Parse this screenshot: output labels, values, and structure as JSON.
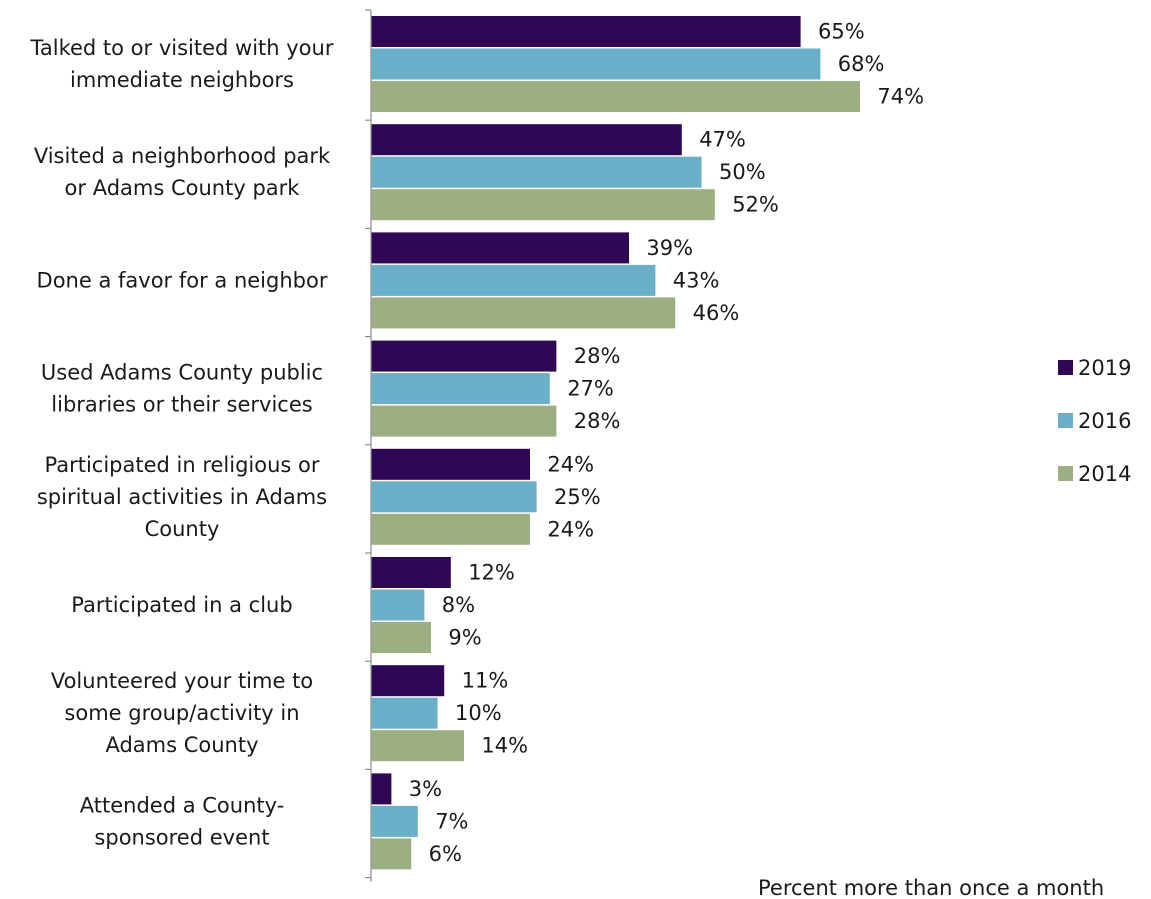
{
  "chart_data": {
    "type": "bar",
    "orientation": "horizontal",
    "categories": [
      [
        "Talked to or visited with your",
        "immediate neighbors"
      ],
      [
        "Visited a neighborhood park",
        "or Adams County park"
      ],
      [
        "Done a favor for a neighbor"
      ],
      [
        "Used Adams County public",
        "libraries or their services"
      ],
      [
        "Participated in religious or",
        "spiritual activities in Adams",
        "County"
      ],
      [
        "Participated in a club"
      ],
      [
        "Volunteered your time to",
        "some group/activity in",
        "Adams County"
      ],
      [
        "Attended a County-",
        "sponsored event"
      ]
    ],
    "series": [
      {
        "name": "2019",
        "color": "#2e0854",
        "values": [
          65,
          47,
          39,
          28,
          24,
          12,
          11,
          3
        ]
      },
      {
        "name": "2016",
        "color": "#6aafc8",
        "values": [
          68,
          50,
          43,
          27,
          25,
          8,
          10,
          7
        ]
      },
      {
        "name": "2014",
        "color": "#9caf82",
        "values": [
          74,
          52,
          46,
          28,
          24,
          9,
          14,
          6
        ]
      }
    ],
    "value_suffix": "%",
    "xlim": [
      0,
      100
    ],
    "grid": false,
    "legend_position": "right",
    "footnote": "Percent more than once a month"
  }
}
